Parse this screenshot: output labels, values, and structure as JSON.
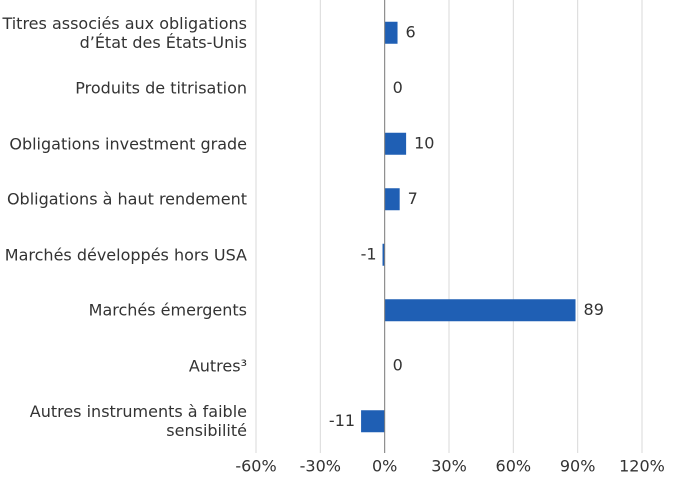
{
  "chart_data": {
    "type": "barh",
    "categories": [
      "Titres associés aux obligations\nd’État des États-Unis",
      "Produits de titrisation",
      "Obligations investment grade",
      "Obligations à haut rendement",
      "Marchés développés hors USA",
      "Marchés émergents",
      "Autres³",
      "Autres instruments à faible\nsensibilité"
    ],
    "values": [
      6,
      0,
      10,
      7,
      -1,
      89,
      0,
      -11
    ],
    "color": "#1f5fb4",
    "xlim": [
      -60,
      120
    ],
    "xticks": [
      {
        "value": -60,
        "label": "-60%"
      },
      {
        "value": -30,
        "label": "-30%"
      },
      {
        "value": 0,
        "label": "0%"
      },
      {
        "value": 30,
        "label": "30%"
      },
      {
        "value": 60,
        "label": "60%"
      },
      {
        "value": 90,
        "label": "90%"
      },
      {
        "value": 120,
        "label": "120%"
      }
    ],
    "grid": true
  }
}
